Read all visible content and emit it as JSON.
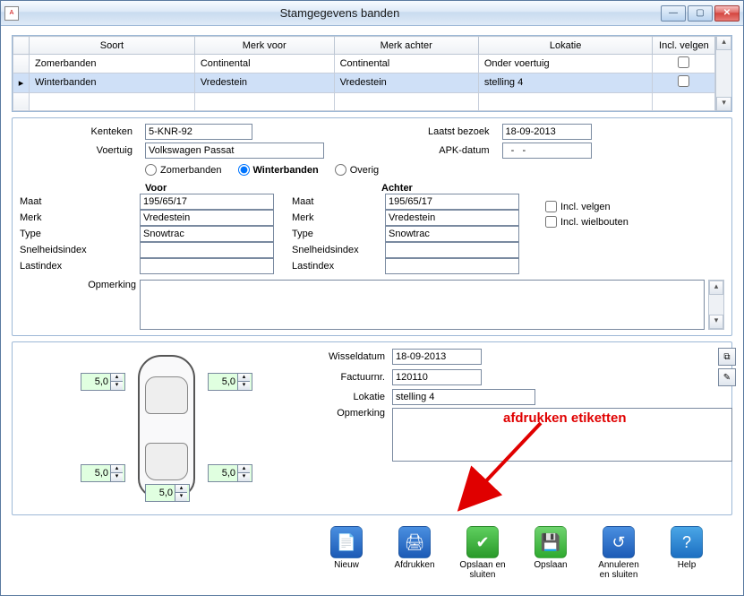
{
  "window": {
    "title": "Stamgegevens banden"
  },
  "grid": {
    "headers": {
      "soort": "Soort",
      "merk_voor": "Merk voor",
      "merk_achter": "Merk achter",
      "lokatie": "Lokatie",
      "incl_velgen": "Incl. velgen"
    },
    "rows": [
      {
        "soort": "Zomerbanden",
        "merk_voor": "Continental",
        "merk_achter": "Continental",
        "lokatie": "Onder voertuig",
        "incl_velgen": false,
        "selected": false
      },
      {
        "soort": "Winterbanden",
        "merk_voor": "Vredestein",
        "merk_achter": "Vredestein",
        "lokatie": "stelling 4",
        "incl_velgen": false,
        "selected": true
      }
    ]
  },
  "header_form": {
    "labels": {
      "kenteken": "Kenteken",
      "voertuig": "Voertuig",
      "laatst_bezoek": "Laatst bezoek",
      "apk_datum": "APK-datum"
    },
    "kenteken": "5-KNR-92",
    "voertuig": "Volkswagen Passat",
    "laatst_bezoek": "18-09-2013",
    "apk_datum": "  -   -"
  },
  "radio": {
    "zomer": "Zomerbanden",
    "winter": "Winterbanden",
    "overig": "Overig",
    "selected": "winter"
  },
  "tire_labels": {
    "voor": "Voor",
    "achter": "Achter",
    "maat": "Maat",
    "merk": "Merk",
    "type": "Type",
    "snelheidsindex": "Snelheidsindex",
    "lastindex": "Lastindex",
    "opmerking": "Opmerking",
    "incl_velgen": "Incl. velgen",
    "incl_wielbouten": "Incl. wielbouten"
  },
  "voor": {
    "maat": "195/65/17",
    "merk": "Vredestein",
    "type": "Snowtrac",
    "snelheidsindex": "",
    "lastindex": ""
  },
  "achter": {
    "maat": "195/65/17",
    "merk": "Vredestein",
    "type": "Snowtrac",
    "snelheidsindex": "",
    "lastindex": ""
  },
  "checks": {
    "incl_velgen": false,
    "incl_wielbouten": false
  },
  "opmerking_top": "",
  "depth": {
    "fl": "5,0",
    "fr": "5,0",
    "rl": "5,0",
    "rm": "5,0",
    "rr": "5,0"
  },
  "bottom_form": {
    "labels": {
      "wisseldatum": "Wisseldatum",
      "factuurnr": "Factuurnr.",
      "lokatie": "Lokatie",
      "opmerking": "Opmerking"
    },
    "wisseldatum": "18-09-2013",
    "factuurnr": "120110",
    "lokatie": "stelling 4",
    "opmerking": ""
  },
  "annotation": {
    "text": "afdrukken etiketten"
  },
  "actions": {
    "nieuw": "Nieuw",
    "afdrukken": "Afdrukken",
    "opslaan_sluiten": "Opslaan en sluiten",
    "opslaan": "Opslaan",
    "annuleren_sluiten": "Annuleren en sluiten",
    "help": "Help"
  },
  "colors": {
    "selection": "#cfe0f7",
    "panel_border": "#9db8d6",
    "spinner_bg": "#e0ffe0",
    "annotation": "#e00000"
  }
}
